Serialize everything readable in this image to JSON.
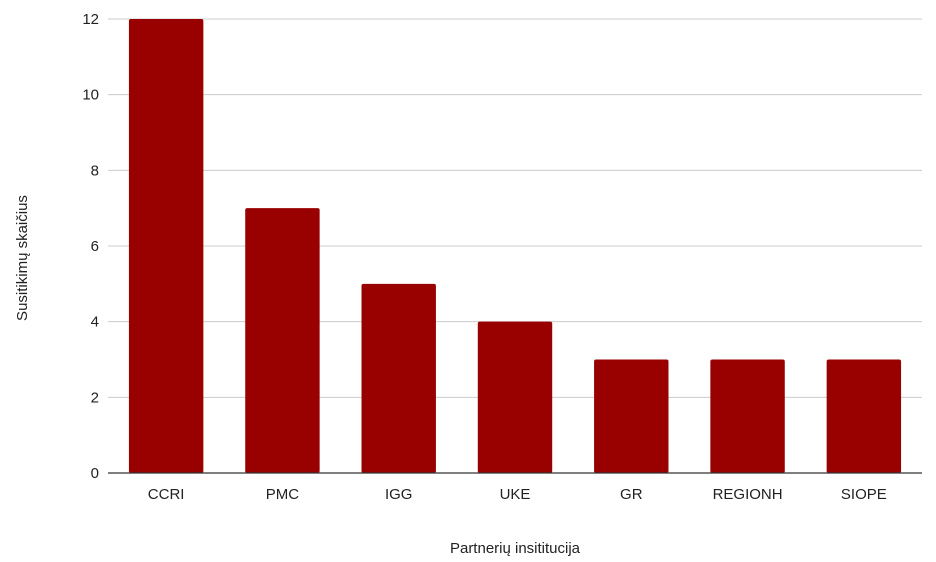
{
  "chart_data": {
    "type": "bar",
    "title": "",
    "xlabel": "Partnerių insititucija",
    "ylabel": "Susitikimų skaičius",
    "categories": [
      "CCRI",
      "PMC",
      "IGG",
      "UKE",
      "GR",
      "REGIONH",
      "SIOPE"
    ],
    "values": [
      12,
      7,
      5,
      4,
      3,
      3,
      3
    ],
    "ylim": [
      0,
      12
    ],
    "yticks": [
      "0",
      "2",
      "4",
      "6",
      "8",
      "10",
      "12"
    ],
    "grid": true,
    "legend": "none",
    "bar_color": "#990000"
  }
}
